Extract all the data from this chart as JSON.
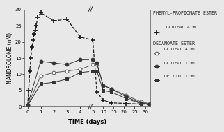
{
  "title": "",
  "xlabel": "TIME (days)",
  "ylabel": "NANDROLONE (nM)",
  "background_color": "#e8e8e8",
  "plot_bg": "#e8e8e8",
  "ylim": [
    0,
    30
  ],
  "series": {
    "phenyl_gluteal4": {
      "label": "GLUTEAL 4 mL",
      "color": "#1a1a1a",
      "marker": "+",
      "markerfacecolor": "#1a1a1a",
      "linestyle": "--",
      "linewidth": 0.9,
      "markersize": 5,
      "markeredgewidth": 1.2,
      "x": [
        0,
        0.083,
        0.167,
        0.25,
        0.333,
        0.417,
        0.5,
        0.583,
        0.667,
        0.75,
        1.0,
        2.0,
        3.0,
        4.0,
        5.0,
        7.0,
        10.0,
        14.0,
        21.0,
        28.0,
        32.0
      ],
      "y": [
        0.3,
        5.0,
        11.0,
        15.0,
        18.5,
        20.5,
        22.5,
        23.5,
        25.0,
        27.5,
        29.0,
        26.5,
        27.0,
        21.5,
        20.5,
        4.5,
        2.0,
        1.2,
        1.0,
        0.8,
        0.8
      ]
    },
    "decanoate_gluteal4": {
      "label": "GLUTEAL 4 ml",
      "color": "#555555",
      "marker": "o",
      "markerfacecolor": "white",
      "linestyle": "-",
      "linewidth": 0.7,
      "markersize": 3.5,
      "markeredgewidth": 0.7,
      "x": [
        0,
        1.0,
        2.0,
        3.0,
        4.0,
        5.0,
        7.0,
        10.0,
        14.0,
        21.0,
        28.0,
        32.0
      ],
      "y": [
        0.3,
        9.5,
        10.5,
        11.0,
        11.5,
        13.0,
        13.0,
        6.5,
        5.5,
        3.5,
        1.5,
        1.0
      ]
    },
    "decanoate_gluteal1": {
      "label": "GLUTEAL 1 ml",
      "color": "#333333",
      "marker": "o",
      "markerfacecolor": "#333333",
      "linestyle": "-",
      "linewidth": 0.7,
      "markersize": 3.5,
      "markeredgewidth": 0.7,
      "x": [
        0,
        1.0,
        2.0,
        3.0,
        4.0,
        5.0,
        7.0,
        10.0,
        14.0,
        21.0,
        28.0,
        32.0
      ],
      "y": [
        0.5,
        14.0,
        13.5,
        13.0,
        14.5,
        14.5,
        13.5,
        6.5,
        5.5,
        3.0,
        1.2,
        0.8
      ]
    },
    "decanoate_deltoid1": {
      "label": "DELTOID 1 ml",
      "color": "#333333",
      "marker": "s",
      "markerfacecolor": "#333333",
      "linestyle": "-",
      "linewidth": 0.7,
      "markersize": 3.0,
      "markeredgewidth": 0.7,
      "x": [
        0,
        1.0,
        2.0,
        3.0,
        4.0,
        5.0,
        7.0,
        10.0,
        14.0,
        21.0,
        28.0,
        32.0
      ],
      "y": [
        0.3,
        7.0,
        7.5,
        8.5,
        10.5,
        11.0,
        11.0,
        5.0,
        4.5,
        2.5,
        1.0,
        0.8
      ]
    }
  },
  "legend_phenyl_header": "PHENYL-PROPIONATE ESTER",
  "legend_decanoate_header": "DECANOATE ESTER",
  "left_xticks": [
    0,
    1,
    2,
    3,
    4
  ],
  "right_xticks": [
    5,
    10,
    15,
    20,
    25,
    30
  ],
  "yticks": [
    0,
    5,
    10,
    15,
    20,
    25,
    30
  ]
}
